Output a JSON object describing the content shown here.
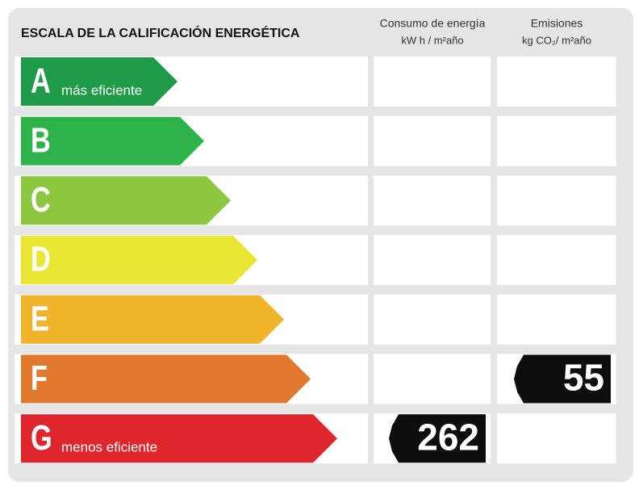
{
  "header": {
    "title": "ESCALA DE LA CALIFICACIÓN ENERGÉTICA",
    "columns": [
      {
        "line1": "Consumo de energía",
        "line2": "kW h / m²año"
      },
      {
        "line1": "Emisiones",
        "line2": "kg CO₂/ m²año"
      }
    ]
  },
  "rows": [
    {
      "letter": "A",
      "label": "más eficiente",
      "color": "#1e9a48"
    },
    {
      "letter": "B",
      "color": "#2db34a"
    },
    {
      "letter": "C",
      "color": "#8dc63f"
    },
    {
      "letter": "D",
      "color": "#e8e533"
    },
    {
      "letter": "E",
      "color": "#f0b42b"
    },
    {
      "letter": "F",
      "color": "#e0782d",
      "emissions": 55
    },
    {
      "letter": "G",
      "label": "menos eficiente",
      "color": "#e0262d",
      "consumption": 262
    }
  ]
}
